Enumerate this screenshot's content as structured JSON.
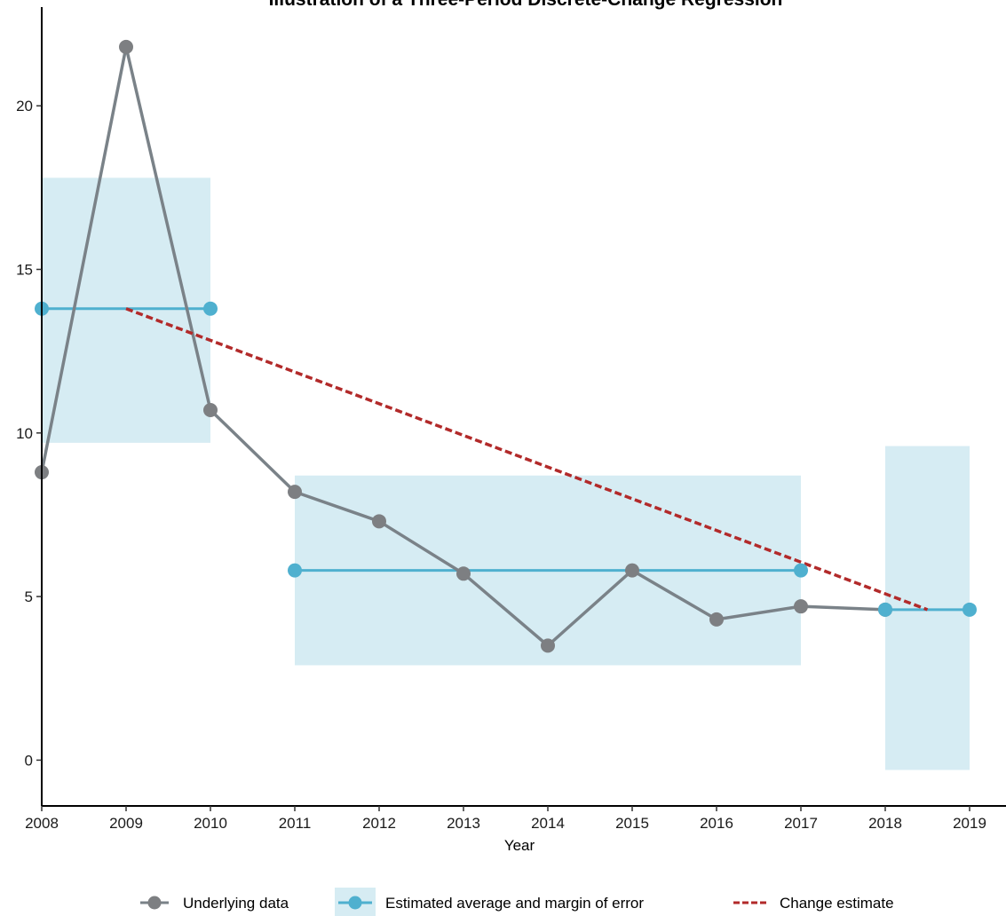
{
  "chart_data": {
    "type": "line",
    "title": "Illustration of a Three-Period Discrete-Change Regression",
    "xlabel": "Year",
    "ylabel": "",
    "xlim": [
      2008,
      2019
    ],
    "ylim": [
      -1.4,
      22.8
    ],
    "x_ticks": [
      2008,
      2009,
      2010,
      2011,
      2012,
      2013,
      2014,
      2015,
      2016,
      2017,
      2018,
      2019
    ],
    "y_ticks": [
      0,
      5,
      10,
      15,
      20
    ],
    "grid": false,
    "legend_position": "bottom",
    "colors": {
      "underlying": "#7a8288",
      "underlying_point": "#7d7f82",
      "estimate": "#4fb0cf",
      "band": "#d6ecf3",
      "change": "#b22a2a"
    },
    "series": [
      {
        "name": "Underlying data",
        "x": [
          2008,
          2009,
          2010,
          2011,
          2012,
          2013,
          2014,
          2015,
          2016,
          2017,
          2018
        ],
        "y": [
          8.8,
          21.8,
          10.7,
          8.2,
          7.3,
          5.7,
          3.5,
          5.8,
          4.3,
          4.7,
          4.6
        ]
      },
      {
        "name": "Estimated average and margin of error",
        "periods": [
          {
            "x_start": 2008,
            "x_end": 2010,
            "estimate": 13.8,
            "lower": 9.7,
            "upper": 17.8
          },
          {
            "x_start": 2011,
            "x_end": 2017,
            "estimate": 5.8,
            "lower": 2.9,
            "upper": 8.7
          },
          {
            "x_start": 2018,
            "x_end": 2019,
            "estimate": 4.6,
            "lower": -0.3,
            "upper": 9.6
          }
        ]
      },
      {
        "name": "Change estimate",
        "x": [
          2009,
          2018.5
        ],
        "y": [
          13.8,
          4.6
        ]
      }
    ]
  }
}
